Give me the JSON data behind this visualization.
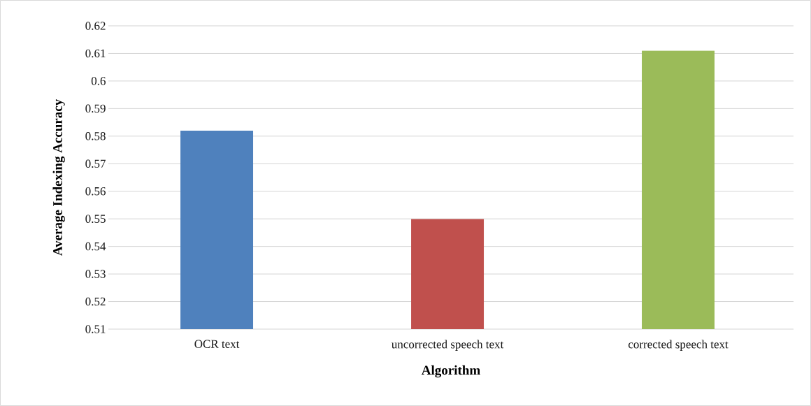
{
  "chart_data": {
    "type": "bar",
    "xlabel": "Algorithm",
    "ylabel": "Average Indexing Accuracy",
    "categories": [
      "OCR text",
      "uncorrected speech text",
      "corrected speech text"
    ],
    "values": [
      0.582,
      0.55,
      0.611
    ],
    "colors": [
      "#4f81bd",
      "#c0504d",
      "#9bbb59"
    ],
    "ylim": [
      0.51,
      0.62
    ],
    "yticks": [
      0.51,
      0.52,
      0.53,
      0.54,
      0.55,
      0.56,
      0.57,
      0.58,
      0.59,
      0.6,
      0.61,
      0.62
    ],
    "grid": "y"
  }
}
